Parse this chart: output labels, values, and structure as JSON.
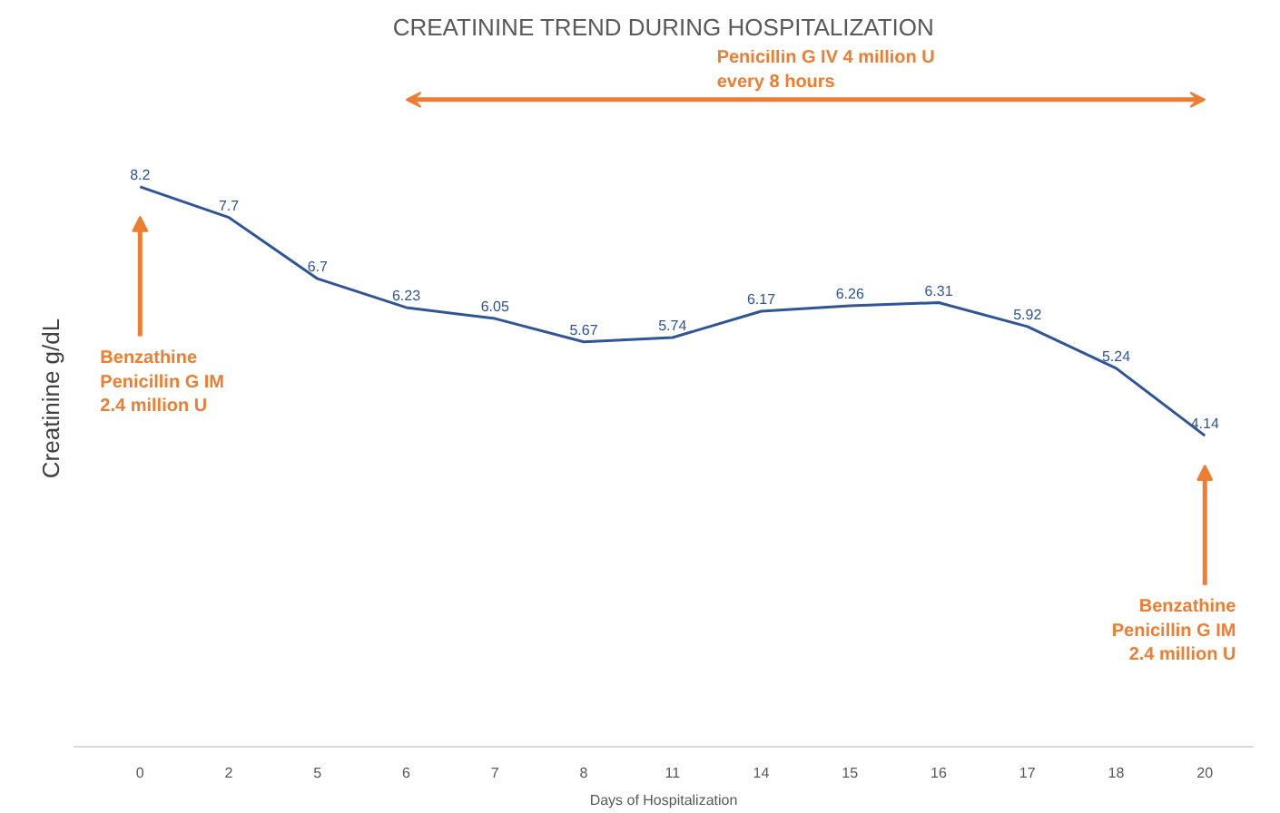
{
  "chart_data": {
    "type": "line",
    "title": "CREATININE TREND DURING HOSPITALIZATION",
    "xlabel": "Days of Hospitalization",
    "ylabel": "Creatinine g/dL",
    "categories": [
      "0",
      "2",
      "5",
      "6",
      "7",
      "8",
      "11",
      "14",
      "15",
      "16",
      "17",
      "18",
      "20"
    ],
    "series": [
      {
        "color": "#2f5597",
        "values": [
          8.2,
          7.7,
          6.7,
          6.23,
          6.05,
          5.67,
          5.74,
          6.17,
          6.26,
          6.31,
          5.92,
          5.24,
          4.14
        ]
      }
    ],
    "data_labels": true,
    "annotations": [
      "Benzathine\nPenicillin G IM\n2.4 million U",
      "Penicillin G IV 4 million U\nevery 8 hours",
      "Benzathine\nPenicillin G IM\n2.4 million U"
    ]
  }
}
